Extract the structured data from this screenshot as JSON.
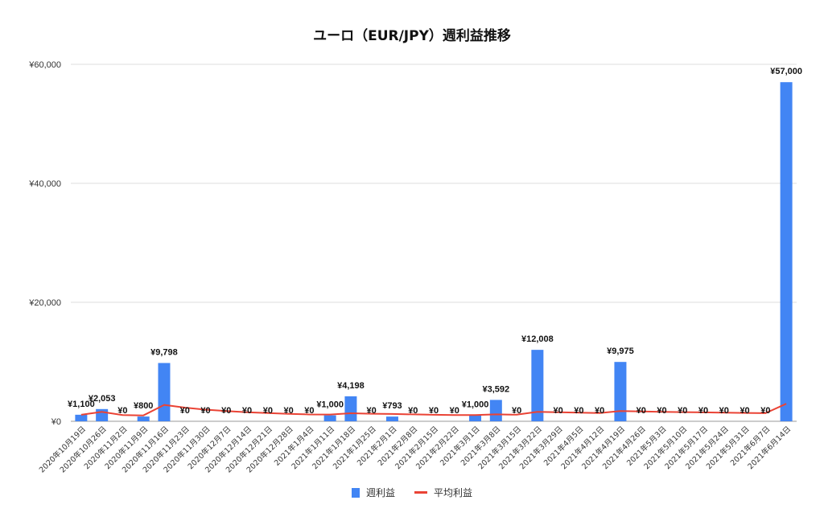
{
  "chart_data": {
    "type": "bar",
    "title": "ユーロ（EUR/JPY）週利益推移",
    "xlabel": "",
    "ylabel": "",
    "ylim": [
      0,
      60000
    ],
    "y_ticks": [
      "¥0",
      "¥20,000",
      "¥40,000",
      "¥60,000"
    ],
    "y_tick_values": [
      0,
      20000,
      40000,
      60000
    ],
    "grid": true,
    "legend_position": "bottom",
    "categories": [
      "2020年10月19日",
      "2020年10月26日",
      "2020年11月2日",
      "2020年11月9日",
      "2020年11月16日",
      "2020年11月23日",
      "2020年11月30日",
      "2020年12月7日",
      "2020年12月14日",
      "2020年12月21日",
      "2020年12月28日",
      "2021年1月4日",
      "2021年1月11日",
      "2021年1月18日",
      "2021年1月25日",
      "2021年2月1日",
      "2021年2月8日",
      "2021年2月15日",
      "2021年2月22日",
      "2021年3月1日",
      "2021年3月8日",
      "2021年3月15日",
      "2021年3月22日",
      "2021年3月29日",
      "2021年4月5日",
      "2021年4月12日",
      "2021年4月19日",
      "2021年4月26日",
      "2021年5月3日",
      "2021年5月10日",
      "2021年5月17日",
      "2021年5月24日",
      "2021年5月31日",
      "2021年6月7日",
      "2021年6月14日"
    ],
    "series": [
      {
        "name": "週利益",
        "kind": "bar",
        "color": "#4285f4",
        "values": [
          1100,
          2053,
          0,
          800,
          9798,
          0,
          0,
          0,
          0,
          0,
          0,
          0,
          1000,
          4198,
          0,
          793,
          0,
          0,
          0,
          1000,
          3592,
          0,
          12008,
          0,
          0,
          0,
          9975,
          0,
          0,
          0,
          0,
          0,
          0,
          0,
          57000
        ],
        "labels": [
          "¥1,100",
          "¥2,053",
          "¥0",
          "¥800",
          "¥9,798",
          "¥0",
          "¥0",
          "¥0",
          "¥0",
          "¥0",
          "¥0",
          "¥0",
          "¥1,000",
          "¥4,198",
          "¥0",
          "¥793",
          "¥0",
          "¥0",
          "¥0",
          "¥1,000",
          "¥3,592",
          "¥0",
          "¥12,008",
          "¥0",
          "¥0",
          "¥0",
          "¥9,975",
          "¥0",
          "¥0",
          "¥0",
          "¥0",
          "¥0",
          "¥0",
          "¥0",
          "¥57,000"
        ]
      },
      {
        "name": "平均利益",
        "kind": "line",
        "color": "#ea4335",
        "values": [
          1100,
          1577,
          1051,
          988,
          2750,
          2292,
          1964,
          1719,
          1528,
          1375,
          1250,
          1146,
          1135,
          1354,
          1264,
          1234,
          1161,
          1097,
          1039,
          1037,
          1159,
          1106,
          1580,
          1514,
          1453,
          1398,
          1715,
          1654,
          1597,
          1544,
          1494,
          1447,
          1403,
          1362,
          2952
        ]
      }
    ]
  }
}
